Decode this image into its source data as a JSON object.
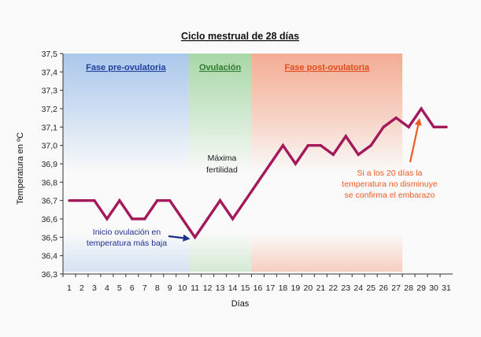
{
  "chart_data": {
    "type": "line",
    "title": "Ciclo mestrual de 28 días",
    "xlabel": "Días",
    "ylabel": "Temperatura en ºC",
    "x": [
      1,
      2,
      3,
      4,
      5,
      6,
      7,
      8,
      9,
      10,
      11,
      12,
      13,
      14,
      15,
      16,
      17,
      18,
      19,
      20,
      21,
      22,
      23,
      24,
      25,
      26,
      27,
      28,
      29,
      30,
      31
    ],
    "x_tick_labels": [
      "1",
      "2",
      "3",
      "4",
      "5",
      "6",
      "7",
      "8",
      "9",
      "10",
      "11",
      "12",
      "13",
      "14",
      "15",
      "16",
      "17",
      "18",
      "19",
      "20",
      "21",
      "22",
      "23",
      "24",
      "25",
      "26",
      "27",
      "28",
      "29",
      "30",
      "31"
    ],
    "series": [
      {
        "color": "#a3195b",
        "values": [
          36.7,
          36.7,
          36.7,
          36.6,
          36.7,
          36.6,
          36.6,
          36.7,
          36.7,
          36.6,
          36.5,
          36.6,
          36.7,
          36.6,
          36.7,
          36.8,
          36.9,
          37.0,
          36.9,
          37.0,
          37.0,
          36.95,
          37.05,
          36.95,
          37.0,
          37.1,
          37.15,
          37.1,
          37.2,
          37.1,
          37.1
        ]
      }
    ],
    "ylim": [
      36.3,
      37.5
    ],
    "y_ticks": [
      "36,3",
      "36,4",
      "36,5",
      "36,6",
      "36,7",
      "36,8",
      "36,9",
      "37,0",
      "37,1",
      "37,2",
      "37,3",
      "37,4",
      "37,5"
    ],
    "y_tick_values": [
      36.3,
      36.4,
      36.5,
      36.6,
      36.7,
      36.8,
      36.9,
      37.0,
      37.1,
      37.2,
      37.3,
      37.4,
      37.5
    ],
    "grid": false,
    "phases": [
      {
        "label": "Fase pre-ovulatoria",
        "from_day": 0.5,
        "to_day": 10.5,
        "color": "#8fb6e6",
        "label_color": "#1f3f9c"
      },
      {
        "label": "Ovulación",
        "from_day": 10.5,
        "to_day": 15.5,
        "color": "#8ccc8a",
        "label_color": "#2f7a2f"
      },
      {
        "label": "Fase post-ovulatoria",
        "from_day": 15.5,
        "to_day": 27.5,
        "color": "#f29a7a",
        "label_color": "#e04a1c"
      }
    ],
    "annotations": [
      {
        "name": "inicio",
        "lines": [
          "Inicio ovulación en",
          "temperatura más baja"
        ],
        "color": "#1e2e8c",
        "target_day": 11,
        "target_value": 36.5
      },
      {
        "name": "maxima",
        "lines": [
          "Máxima",
          "fertilidad"
        ],
        "color": "#1a1a1a"
      },
      {
        "name": "embarazo",
        "lines": [
          "Si a los 20 días la",
          "temperatura no disminuye",
          "se confirma el embarazo"
        ],
        "color": "#ee5a22",
        "target_day": 29,
        "target_value": 37.2
      }
    ]
  }
}
